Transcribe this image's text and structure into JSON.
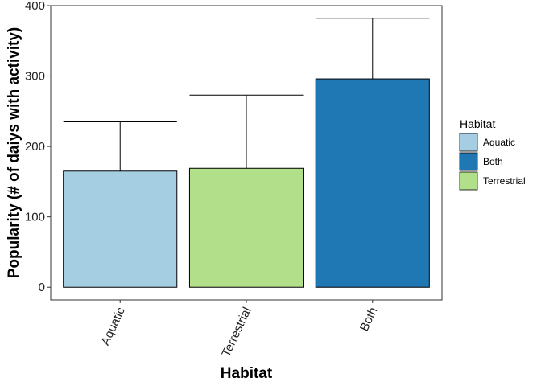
{
  "chart_data": {
    "type": "bar",
    "categories": [
      "Aquatic",
      "Terrestrial",
      "Both"
    ],
    "values": [
      165,
      169,
      296
    ],
    "error_upper": [
      235,
      273,
      382
    ],
    "colors": [
      "#a6cee3",
      "#b2df8a",
      "#1f78b4"
    ],
    "xlabel": "Habitat",
    "ylabel": "Popularity (# of daiys with activity)",
    "ylim": [
      -18,
      400
    ],
    "yticks": [
      0,
      100,
      200,
      300,
      400
    ],
    "grid": false,
    "legend": {
      "title": "Habitat",
      "placement": "right",
      "items": [
        {
          "label": "Aquatic",
          "color": "#a6cee3"
        },
        {
          "label": "Both",
          "color": "#1f78b4"
        },
        {
          "label": "Terrestrial",
          "color": "#b2df8a"
        }
      ]
    }
  }
}
